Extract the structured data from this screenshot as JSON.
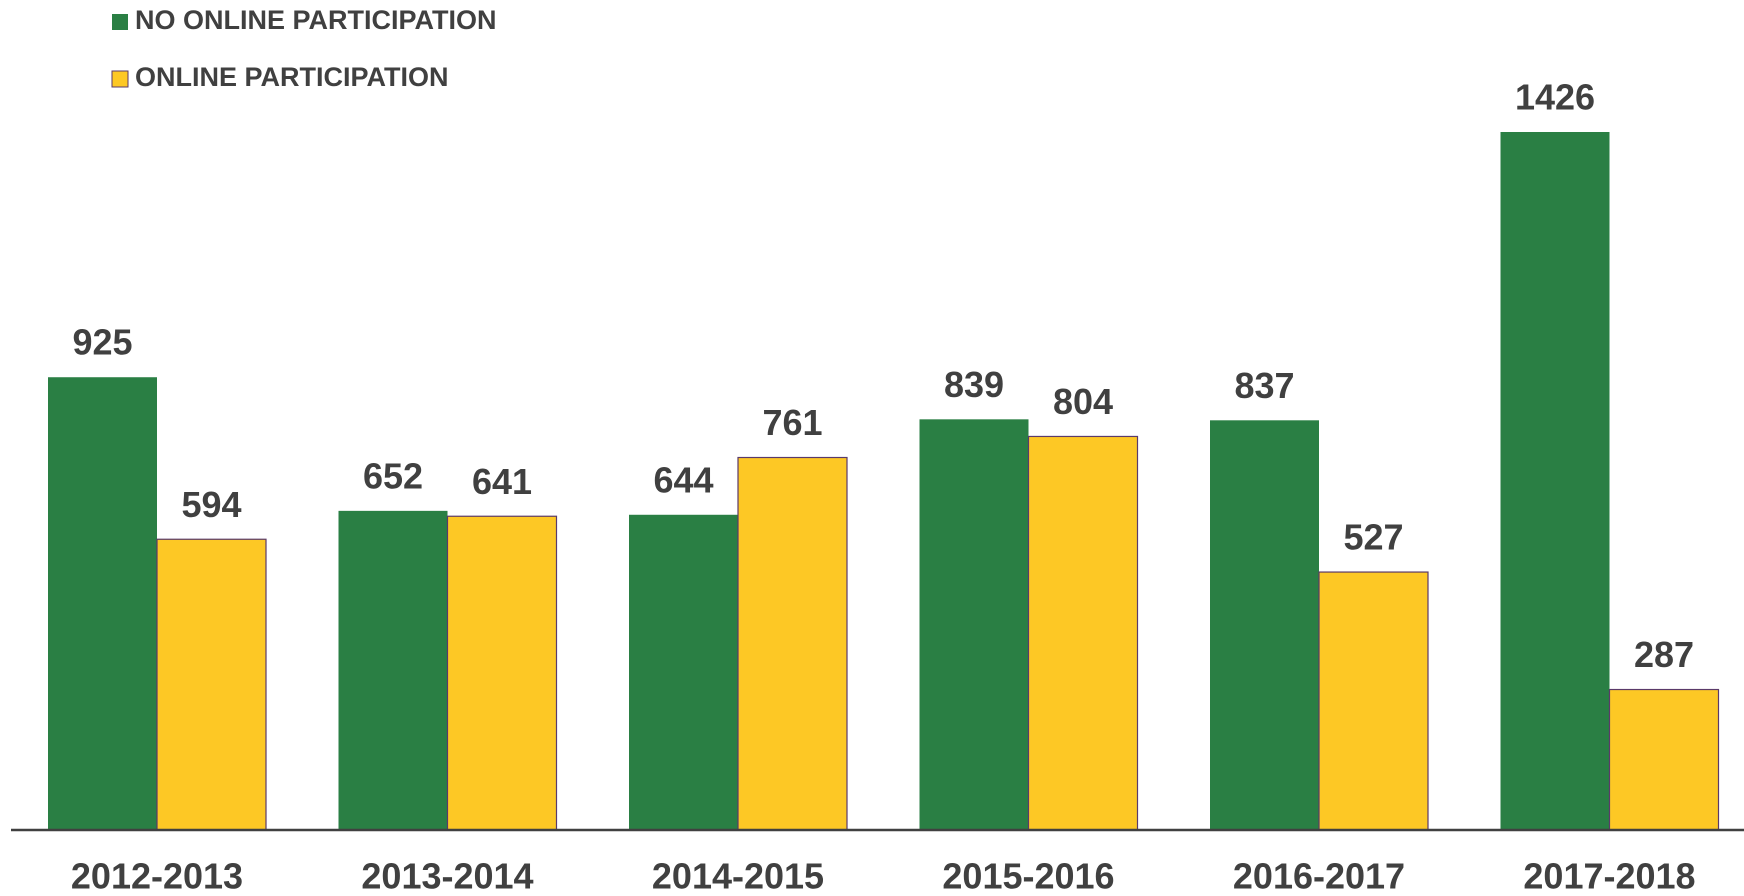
{
  "chart_data": {
    "type": "bar",
    "categories": [
      "2012-2013",
      "2013-2014",
      "2014-2015",
      "2015-2016",
      "2016-2017",
      "2017-2018"
    ],
    "series": [
      {
        "name": "NO ONLINE PARTICIPATION",
        "color": "#2a7f44",
        "values": [
          925,
          652,
          644,
          839,
          837,
          1426
        ]
      },
      {
        "name": "ONLINE PARTICIPATION",
        "color": "#fdc825",
        "values": [
          594,
          641,
          761,
          804,
          527,
          287
        ]
      }
    ],
    "legend": "top-left"
  }
}
